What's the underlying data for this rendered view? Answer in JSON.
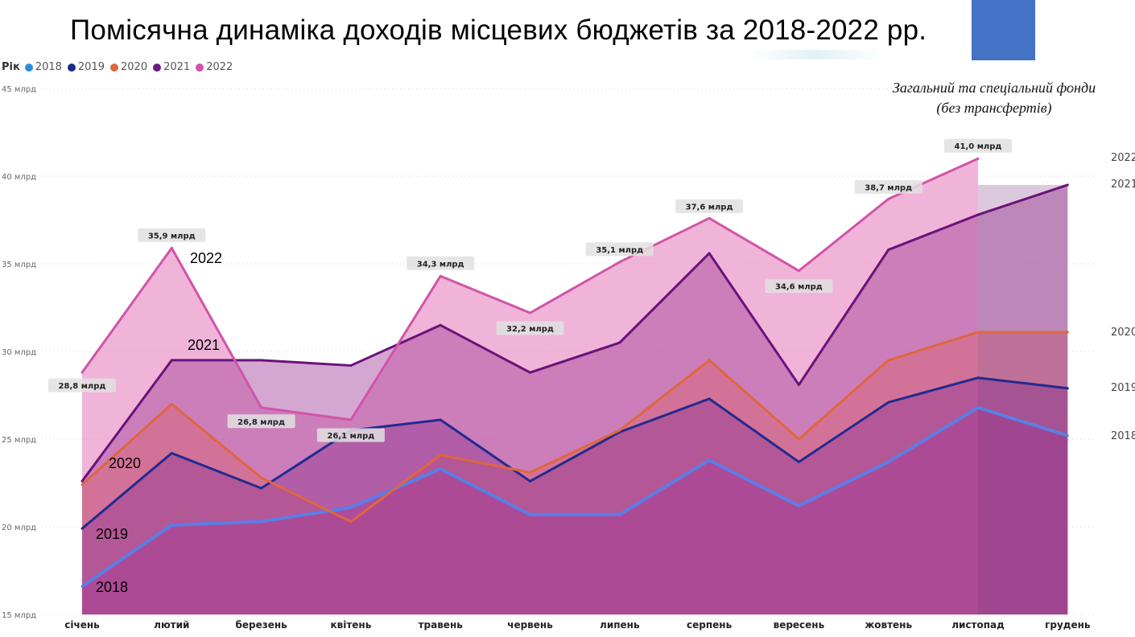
{
  "title": "Помісячна динаміка доходів місцевих бюджетів за 2018-2022 рр.",
  "subtitle_line1": "Загальний та спеціальний фонди",
  "subtitle_line2": "(без трансфертів)",
  "accent_color": "#4472c4",
  "chart_data": {
    "type": "area",
    "legend_title": "Рік",
    "legend_position": "top-left",
    "grid": true,
    "x": [
      "січень",
      "лютий",
      "березень",
      "квітень",
      "травень",
      "червень",
      "липень",
      "серпень",
      "вересень",
      "жовтень",
      "листопад",
      "грудень"
    ],
    "ylim": [
      15,
      45
    ],
    "yticks": [
      {
        "value": 15,
        "label": "15 млрд"
      },
      {
        "value": 20,
        "label": "20 млрд"
      },
      {
        "value": 25,
        "label": "25 млрд"
      },
      {
        "value": 30,
        "label": "30 млрд"
      },
      {
        "value": 35,
        "label": "35 млрд"
      },
      {
        "value": 40,
        "label": "40 млрд"
      },
      {
        "value": 45,
        "label": "45 млрд"
      }
    ],
    "series": [
      {
        "name": "2018",
        "color": "#2a8fe0",
        "line_color": "#5a7ee6",
        "fill": "rgba(168,64,150,0.55)",
        "values": [
          16.6,
          20.1,
          20.3,
          21.1,
          23.3,
          20.7,
          20.7,
          23.8,
          21.2,
          23.7,
          26.8,
          25.2
        ]
      },
      {
        "name": "2019",
        "color": "#1e2a8c",
        "line_color": "#222a90",
        "fill": "rgba(150,60,150,0.5)",
        "values": [
          19.9,
          24.2,
          22.2,
          25.5,
          26.1,
          22.6,
          25.4,
          27.3,
          23.7,
          27.1,
          28.5,
          27.9
        ]
      },
      {
        "name": "2020",
        "color": "#e0663c",
        "line_color": "#e0663c",
        "fill": "rgba(220,100,110,0.45)",
        "values": [
          22.4,
          27.0,
          22.8,
          20.3,
          24.1,
          23.1,
          25.5,
          29.5,
          25.0,
          29.5,
          31.1,
          31.1
        ]
      },
      {
        "name": "2021",
        "color": "#6a1a80",
        "line_color": "#6a127a",
        "fill": "rgba(160,60,150,0.45)",
        "values": [
          22.6,
          29.5,
          29.5,
          29.2,
          31.5,
          28.8,
          30.5,
          35.6,
          28.1,
          35.8,
          37.8,
          39.5
        ]
      },
      {
        "name": "2022",
        "color": "#d154a9",
        "line_color": "#d154a9",
        "fill": "rgba(230,130,190,0.6)",
        "values": [
          28.8,
          35.9,
          26.8,
          26.1,
          34.3,
          32.2,
          35.1,
          37.6,
          34.6,
          38.7,
          41.0,
          null
        ]
      }
    ],
    "data_labels": [
      "28,8 млрд",
      "35,9 млрд",
      "26,8 млрд",
      "26,1 млрд",
      "34,3 млрд",
      "32,2 млрд",
      "35,1 млрд",
      "37,6 млрд",
      "34,6 млрд",
      "38,7 млрд",
      "41,0 млрд"
    ],
    "series_end_labels": [
      "2018",
      "2019",
      "2020",
      "2021",
      "2022"
    ],
    "annotations": [
      "2022",
      "2021",
      "2020",
      "2019",
      "2018"
    ]
  }
}
